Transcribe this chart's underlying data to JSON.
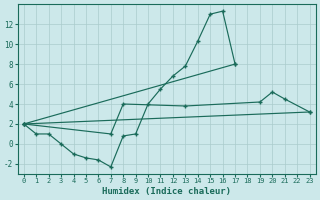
{
  "bg_color": "#cce8ea",
  "grid_color": "#aacccc",
  "line_color": "#1a6b5a",
  "xlabel": "Humidex (Indice chaleur)",
  "xlim": [
    -0.5,
    23.5
  ],
  "ylim": [
    -3,
    14
  ],
  "xticks": [
    0,
    1,
    2,
    3,
    4,
    5,
    6,
    7,
    8,
    9,
    10,
    11,
    12,
    13,
    14,
    15,
    16,
    17,
    18,
    19,
    20,
    21,
    22,
    23
  ],
  "yticks": [
    -2,
    0,
    2,
    4,
    6,
    8,
    10,
    12
  ],
  "curve1_x": [
    0,
    1,
    2,
    3,
    4,
    5,
    6,
    7,
    8,
    9,
    10,
    11,
    12,
    13,
    14,
    15,
    16,
    17
  ],
  "curve1_y": [
    2,
    1,
    1,
    0,
    -1,
    -1.4,
    -1.6,
    -2.3,
    0.8,
    1.0,
    4.0,
    5.5,
    6.8,
    7.8,
    10.3,
    13.0,
    13.3,
    8.0
  ],
  "curve2_x": [
    0,
    23
  ],
  "curve2_y": [
    2,
    3.2
  ],
  "curve3_x": [
    0,
    17
  ],
  "curve3_y": [
    2,
    8.0
  ],
  "curve4_x": [
    0,
    7,
    8,
    13,
    19,
    20,
    21,
    23
  ],
  "curve4_y": [
    2,
    1.0,
    4.0,
    3.8,
    4.2,
    5.2,
    4.5,
    3.2
  ]
}
